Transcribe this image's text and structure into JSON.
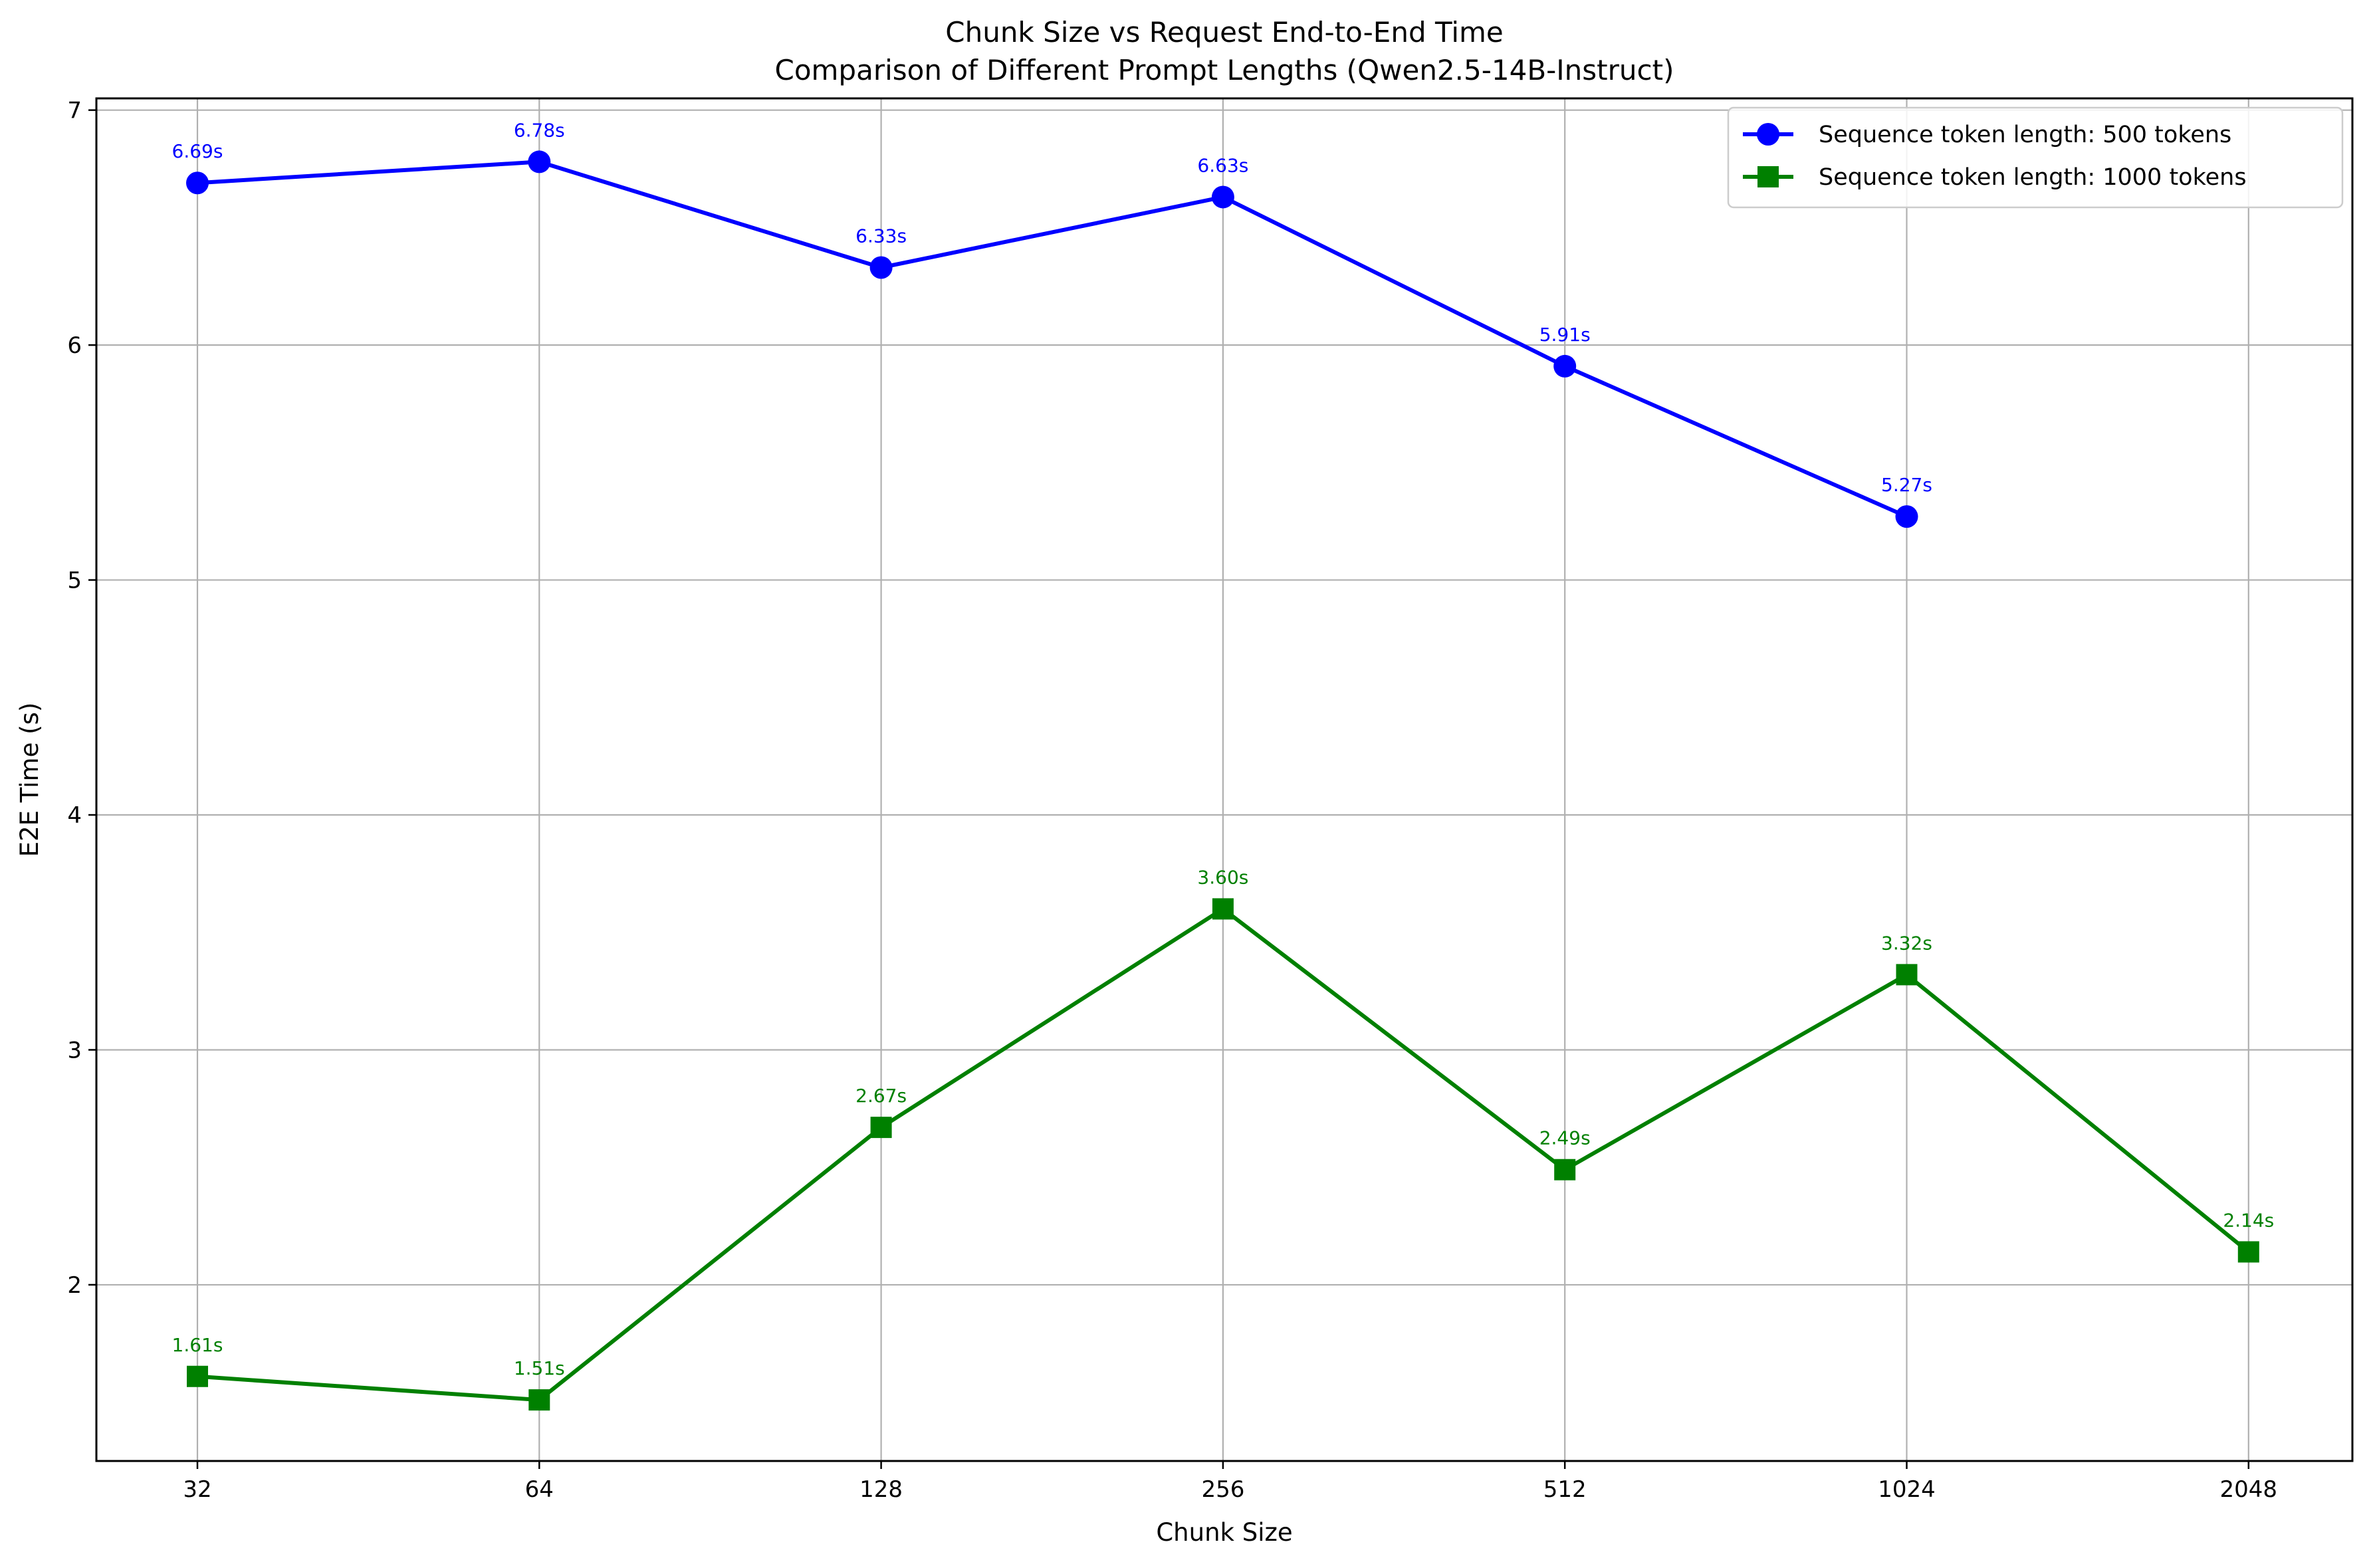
{
  "chart_data": {
    "type": "line",
    "title": "Chunk Size vs Request End-to-End Time",
    "subtitle": "Comparison of Different Prompt Lengths (Qwen2.5-14B-Instruct)",
    "xlabel": "Chunk Size",
    "ylabel": "E2E Time (s)",
    "x_scale": "log2",
    "categories": [
      "32",
      "64",
      "128",
      "256",
      "512",
      "1024",
      "2048"
    ],
    "x": [
      32,
      64,
      128,
      256,
      512,
      1024,
      2048
    ],
    "ylim": [
      1.25,
      7.05
    ],
    "yticks": [
      "2",
      "3",
      "4",
      "5",
      "6",
      "7"
    ],
    "grid": true,
    "legend_position": "top-right",
    "series": [
      {
        "name": "Sequence token length: 500 tokens",
        "color": "#0000ff",
        "marker": "circle",
        "x": [
          32,
          64,
          128,
          256,
          512,
          1024
        ],
        "values": [
          6.69,
          6.78,
          6.33,
          6.63,
          5.91,
          5.27
        ],
        "labels": [
          "6.69s",
          "6.78s",
          "6.33s",
          "6.63s",
          "5.91s",
          "5.27s"
        ]
      },
      {
        "name": "Sequence token length: 1000 tokens",
        "color": "#008000",
        "marker": "square",
        "x": [
          32,
          64,
          128,
          256,
          512,
          1024,
          2048
        ],
        "values": [
          1.61,
          1.51,
          2.67,
          3.6,
          2.49,
          3.32,
          2.14
        ],
        "labels": [
          "1.61s",
          "1.51s",
          "2.67s",
          "3.60s",
          "2.49s",
          "3.32s",
          "2.14s"
        ]
      }
    ]
  }
}
